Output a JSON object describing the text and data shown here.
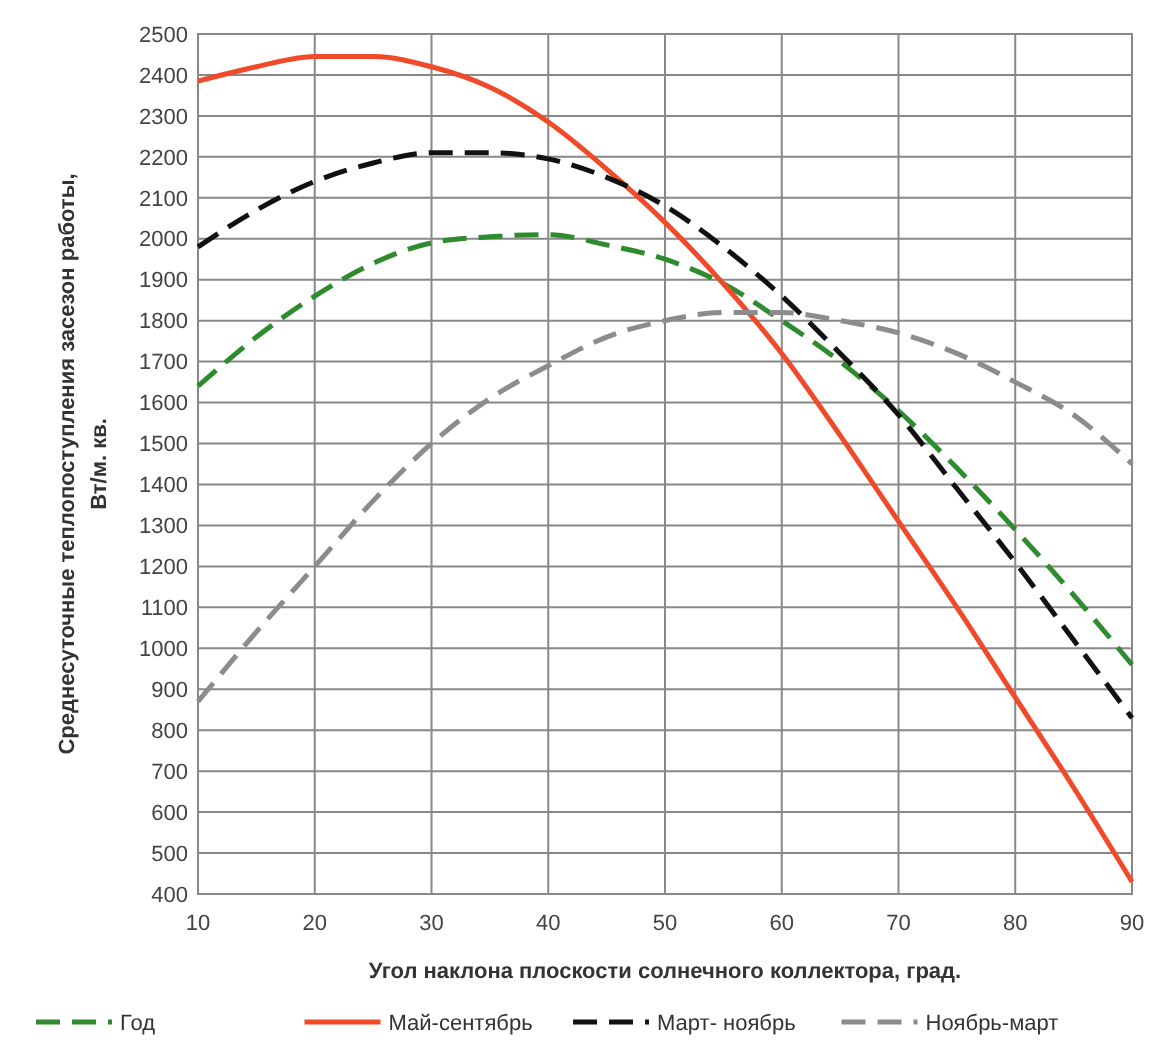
{
  "chart_data": {
    "type": "line",
    "xlabel": "Угол наклона плоскости солнечного коллектора, град.",
    "ylabel": "Среднесуточные теплопоступления засезон работы,\nВт/м. кв.",
    "x": [
      10,
      15,
      20,
      25,
      30,
      35,
      40,
      45,
      50,
      55,
      60,
      65,
      70,
      75,
      80,
      85,
      90
    ],
    "series": [
      {
        "name": "Год",
        "color": "#2e8b2e",
        "line_style": "dashed",
        "values": [
          1640,
          1760,
          1860,
          1940,
          1990,
          2005,
          2010,
          1985,
          1950,
          1890,
          1800,
          1700,
          1580,
          1440,
          1290,
          1130,
          960
        ]
      },
      {
        "name": "Май-сентябрь",
        "color": "#f04a2a",
        "line_style": "solid",
        "values": [
          2385,
          2420,
          2445,
          2445,
          2420,
          2370,
          2285,
          2170,
          2040,
          1890,
          1720,
          1520,
          1310,
          1100,
          880,
          660,
          430
        ]
      },
      {
        "name": "Март- ноябрь",
        "color": "#111111",
        "line_style": "dashed",
        "values": [
          1980,
          2070,
          2140,
          2185,
          2210,
          2210,
          2195,
          2150,
          2080,
          1980,
          1860,
          1720,
          1570,
          1390,
          1210,
          1020,
          830
        ]
      },
      {
        "name": "Ноябрь-март",
        "color": "#8c8c8c",
        "line_style": "dashed",
        "values": [
          870,
          1040,
          1200,
          1360,
          1500,
          1610,
          1690,
          1760,
          1800,
          1820,
          1820,
          1800,
          1770,
          1720,
          1650,
          1570,
          1450
        ]
      }
    ],
    "xlim": [
      10,
      90
    ],
    "xticks": [
      10,
      20,
      30,
      40,
      50,
      60,
      70,
      80,
      90
    ],
    "ylim": [
      400,
      2500
    ],
    "yticks": [
      400,
      500,
      600,
      700,
      800,
      900,
      1000,
      1100,
      1200,
      1300,
      1400,
      1500,
      1600,
      1700,
      1800,
      1900,
      2000,
      2100,
      2200,
      2300,
      2400,
      2500
    ],
    "grid": true,
    "legend": "bottom"
  }
}
